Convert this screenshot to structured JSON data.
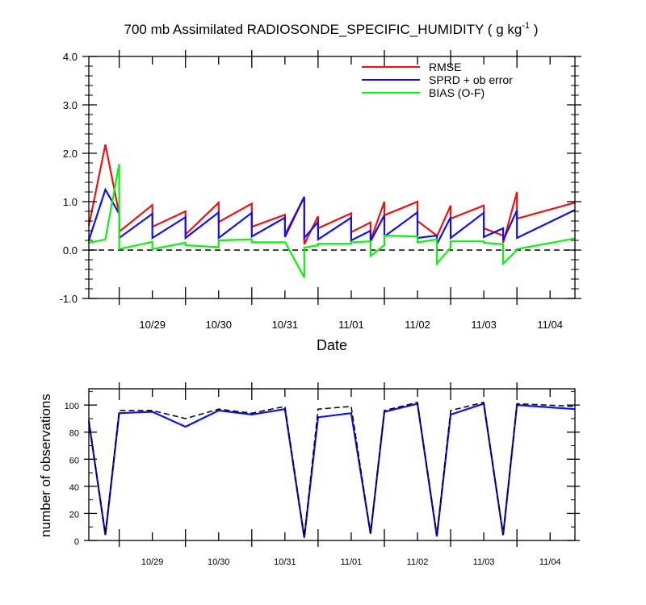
{
  "chart_data": [
    {
      "type": "line",
      "title_main": "700 mb Assimilated RADIOSONDE_SPECIFIC_HUMIDITY ( g kg",
      "title_sup": "-1",
      "title_end": " )",
      "xlabel": "Date",
      "ylabel": "",
      "ylim": [
        -1.0,
        4.0
      ],
      "xlim": [
        "10/28 13:00",
        "11/04 21:00"
      ],
      "yticks": [
        "-1.0",
        "0.0",
        "1.0",
        "2.0",
        "3.0",
        "4.0"
      ],
      "xticks": [
        "10/29",
        "10/30",
        "10/31",
        "11/01",
        "11/02",
        "11/03",
        "11/04"
      ],
      "legend_position": "top-right",
      "reference_line": 0.0,
      "series": [
        {
          "name": "RMSE",
          "color": "#ee1111",
          "x": [
            "10/28 13:00",
            "10/28 19:00",
            "10/29 00:00",
            "10/29 00:00",
            "10/29 12:00",
            "10/29 12:00",
            "10/30 00:00",
            "10/30 00:00",
            "10/30 12:00",
            "10/30 12:00",
            "10/31 00:00",
            "10/31 00:00",
            "10/31 12:00",
            "10/31 12:00",
            "10/31 19:00",
            "10/31 19:00",
            "11/01 00:00",
            "11/01 00:00",
            "11/01 12:00",
            "11/01 12:00",
            "11/01 19:00",
            "11/01 19:00",
            "11/02 00:00",
            "11/02 00:00",
            "11/02 12:00",
            "11/02 12:00",
            "11/02 19:00",
            "11/02 19:00",
            "11/03 00:00",
            "11/03 00:00",
            "11/03 12:00",
            "11/03 12:00",
            "11/03 19:00",
            "11/03 19:00",
            "11/04 00:00",
            "11/04 00:00",
            "11/04 21:00"
          ],
          "y": [
            0.5,
            2.18,
            0.75,
            0.38,
            0.93,
            0.48,
            0.8,
            0.32,
            0.98,
            0.58,
            0.96,
            0.48,
            0.73,
            0.32,
            1.1,
            0.12,
            0.7,
            0.45,
            0.76,
            0.37,
            0.57,
            0.2,
            1.0,
            0.72,
            1.0,
            0.6,
            0.3,
            0.28,
            0.92,
            0.65,
            0.92,
            0.45,
            0.3,
            0.15,
            1.2,
            0.65,
            0.98
          ]
        },
        {
          "name": "SPRD + ob error",
          "color": "#1111ee",
          "x": [
            "10/28 13:00",
            "10/28 19:00",
            "10/29 00:00",
            "10/29 00:00",
            "10/29 12:00",
            "10/29 12:00",
            "10/30 00:00",
            "10/30 00:00",
            "10/30 12:00",
            "10/30 12:00",
            "10/31 00:00",
            "10/31 00:00",
            "10/31 12:00",
            "10/31 12:00",
            "10/31 19:00",
            "10/31 19:00",
            "11/01 00:00",
            "11/01 00:00",
            "11/01 12:00",
            "11/01 12:00",
            "11/01 19:00",
            "11/01 19:00",
            "11/02 00:00",
            "11/02 00:00",
            "11/02 12:00",
            "11/02 12:00",
            "11/02 19:00",
            "11/02 19:00",
            "11/03 00:00",
            "11/03 00:00",
            "11/03 12:00",
            "11/03 12:00",
            "11/03 19:00",
            "11/03 19:00",
            "11/04 00:00",
            "11/04 00:00",
            "11/04 21:00"
          ],
          "y": [
            0.2,
            1.25,
            0.75,
            0.25,
            0.75,
            0.25,
            0.68,
            0.25,
            0.78,
            0.25,
            0.77,
            0.28,
            0.67,
            0.27,
            1.1,
            0.25,
            0.58,
            0.22,
            0.67,
            0.2,
            0.4,
            0.18,
            0.72,
            0.28,
            0.78,
            0.25,
            0.3,
            0.12,
            0.68,
            0.25,
            0.77,
            0.27,
            0.45,
            0.2,
            0.82,
            0.25,
            0.83
          ]
        },
        {
          "name": "BIAS (O-F)",
          "color": "#11ee11",
          "x": [
            "10/28 13:00",
            "10/28 19:00",
            "10/29 00:00",
            "10/29 00:00",
            "10/29 12:00",
            "10/29 12:00",
            "10/30 00:00",
            "10/30 00:00",
            "10/30 12:00",
            "10/30 12:00",
            "10/31 00:00",
            "10/31 00:00",
            "10/31 12:00",
            "10/31 12:00",
            "10/31 19:00",
            "10/31 19:00",
            "11/01 00:00",
            "11/01 00:00",
            "11/01 12:00",
            "11/01 12:00",
            "11/01 19:00",
            "11/01 19:00",
            "11/02 00:00",
            "11/02 00:00",
            "11/02 12:00",
            "11/02 12:00",
            "11/02 19:00",
            "11/02 19:00",
            "11/03 00:00",
            "11/03 00:00",
            "11/03 12:00",
            "11/03 12:00",
            "11/03 19:00",
            "11/03 19:00",
            "11/04 00:00",
            "11/04 00:00",
            "11/04 21:00"
          ],
          "y": [
            0.15,
            0.22,
            1.78,
            0.02,
            0.17,
            0.02,
            0.15,
            0.1,
            0.06,
            0.2,
            0.22,
            0.16,
            0.16,
            0.17,
            -0.57,
            0.05,
            0.1,
            0.13,
            0.13,
            0.16,
            0.18,
            -0.12,
            0.1,
            0.3,
            0.28,
            0.16,
            0.22,
            -0.28,
            0.05,
            0.18,
            0.18,
            0.15,
            0.12,
            -0.28,
            0.0,
            0.02,
            0.24
          ]
        }
      ]
    },
    {
      "type": "line",
      "ylabel": "number of observations",
      "ylim": [
        0,
        112
      ],
      "xlim": [
        "10/28 13:00",
        "11/04 21:00"
      ],
      "yticks": [
        "0",
        "20",
        "40",
        "60",
        "80",
        "100"
      ],
      "xticks": [
        "10/29",
        "10/30",
        "10/31",
        "11/01",
        "11/02",
        "11/03",
        "11/04"
      ],
      "series": [
        {
          "color": "#1111ee",
          "dash": false,
          "x": [
            "10/28 13:00",
            "10/28 19:00",
            "10/29 00:00",
            "10/29 12:00",
            "10/30 00:00",
            "10/30 12:00",
            "10/31 00:00",
            "10/31 12:00",
            "10/31 19:00",
            "11/01 00:00",
            "11/01 12:00",
            "11/01 19:00",
            "11/02 00:00",
            "11/02 12:00",
            "11/02 19:00",
            "11/03 00:00",
            "11/03 12:00",
            "11/03 19:00",
            "11/04 00:00",
            "11/04 21:00"
          ],
          "y": [
            88,
            4,
            94,
            95,
            84,
            96,
            93,
            97,
            2,
            91,
            94,
            5,
            95,
            101,
            3,
            93,
            101,
            4,
            100,
            97
          ]
        },
        {
          "color": "#000000",
          "dash": true,
          "x": [
            "10/28 13:00",
            "10/28 19:00",
            "10/29 00:00",
            "10/29 12:00",
            "10/30 00:00",
            "10/30 12:00",
            "10/31 00:00",
            "10/31 12:00",
            "10/31 19:00",
            "11/01 00:00",
            "11/01 12:00",
            "11/01 19:00",
            "11/02 00:00",
            "11/02 12:00",
            "11/02 19:00",
            "11/03 00:00",
            "11/03 12:00",
            "11/03 19:00",
            "11/04 00:00",
            "11/04 21:00"
          ],
          "y": [
            89,
            5,
            96,
            96,
            90,
            97,
            94,
            99,
            3,
            97,
            99,
            5,
            96,
            102,
            4,
            96,
            102,
            4,
            101,
            99
          ]
        }
      ]
    }
  ]
}
